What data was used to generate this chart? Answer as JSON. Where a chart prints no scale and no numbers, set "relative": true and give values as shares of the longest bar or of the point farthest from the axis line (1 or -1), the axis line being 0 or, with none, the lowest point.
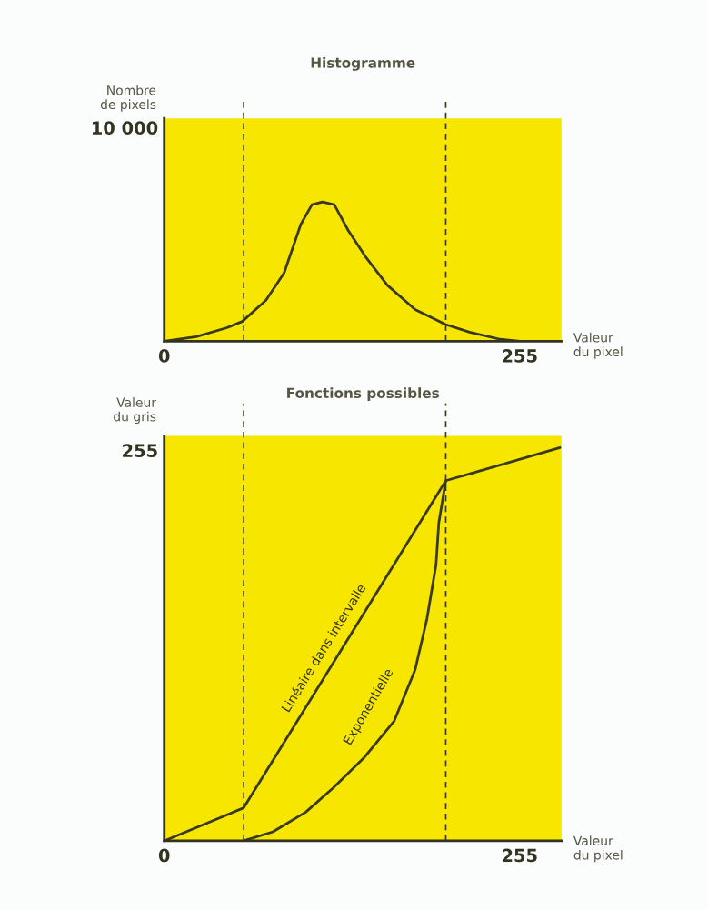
{
  "chart_data": [
    {
      "type": "line",
      "title": "Histogramme",
      "ylabel": "Nombre\nde pixels",
      "xlabel": "Valeur\ndu pixel",
      "relative": true,
      "x": [
        0,
        23,
        45,
        56,
        73,
        86,
        98,
        106,
        113.5,
        122,
        132,
        145,
        160,
        180,
        202,
        219,
        241,
        255
      ],
      "series": [
        {
          "color": "#3a3a1a",
          "values": [
            0,
            0.033,
            0.097,
            0.142,
            0.294,
            0.49,
            0.839,
            0.98,
            1,
            0.98,
            0.795,
            0.598,
            0.403,
            0.228,
            0.12,
            0.065,
            0.014,
            0
          ]
        }
      ],
      "xlim": [
        0,
        285
      ],
      "xticks": [
        0,
        255
      ],
      "annotations": [
        "10 000"
      ],
      "ref_lines": [
        {
          "axis": "x",
          "value": 57,
          "line_style": "dashed",
          "color": "#3a3a1a"
        },
        {
          "axis": "x",
          "value": 202,
          "line_style": "dashed",
          "color": "#3a3a1a"
        }
      ],
      "grid": false,
      "legend": false
    },
    {
      "type": "line",
      "title": "Fonctions possibles",
      "ylabel": "Valeur\ndu gris",
      "xlabel": "Valeur\ndu pixel",
      "relative": true,
      "series": [
        {
          "name": "Linéaire dans intervalle",
          "color": "#3a3a1a",
          "x": [
            0,
            57,
            202,
            284
          ],
          "values": [
            0,
            0.084,
            0.916,
            1
          ]
        },
        {
          "name": "Exponentielle",
          "color": "#3a3a1a",
          "x": [
            57,
            78,
            101.5,
            121,
            143,
            165,
            180,
            188.5,
            195,
            197,
            202
          ],
          "values": [
            0,
            0.023,
            0.073,
            0.134,
            0.21,
            0.305,
            0.435,
            0.565,
            0.702,
            0.809,
            0.916
          ]
        }
      ],
      "xlim": [
        0,
        285
      ],
      "xticks": [
        0,
        255
      ],
      "annotations": [
        "255"
      ],
      "ref_lines": [
        {
          "axis": "x",
          "value": 57,
          "line_style": "dashed",
          "color": "#3a3a1a"
        },
        {
          "axis": "x",
          "value": 202,
          "line_style": "dashed",
          "color": "#3a3a1a"
        }
      ],
      "grid": false,
      "legend": false
    }
  ]
}
